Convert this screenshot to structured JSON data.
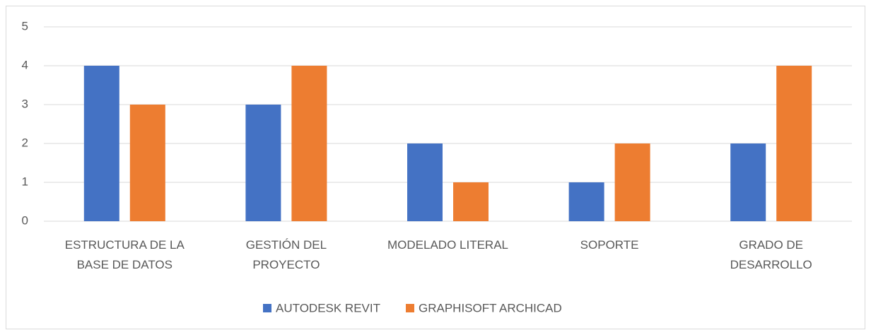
{
  "chart_data": {
    "type": "bar",
    "categories": [
      "ESTRUCTURA DE LA BASE DE DATOS",
      "GESTIÓN DEL PROYECTO",
      "MODELADO LITERAL",
      "SOPORTE",
      "GRADO DE DESARROLLO"
    ],
    "series": [
      {
        "name": "AUTODESK REVIT",
        "color": "#4472c4",
        "values": [
          4,
          3,
          2,
          1,
          2
        ]
      },
      {
        "name": "GRAPHISOFT ARCHICAD",
        "color": "#ed7d31",
        "values": [
          3,
          4,
          1,
          2,
          4
        ]
      }
    ],
    "ylim": [
      0,
      5
    ],
    "yticks": [
      0,
      1,
      2,
      3,
      4,
      5
    ],
    "grid": true,
    "legend": "bottom"
  }
}
